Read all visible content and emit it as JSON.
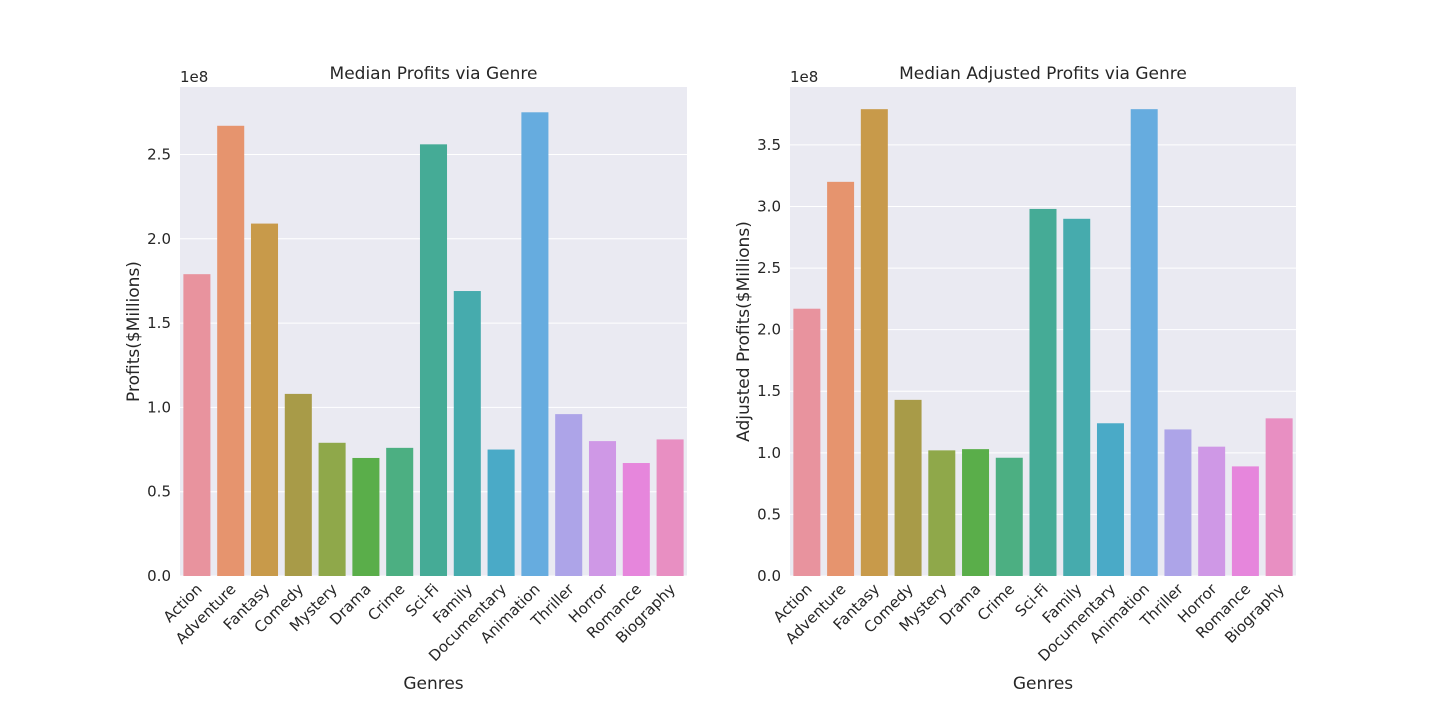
{
  "chart_data": [
    {
      "type": "bar",
      "title": "Median Profits via Genre",
      "xlabel": "Genres",
      "ylabel": "Profits($Millions)",
      "y_multiplier": "1e8",
      "ylim": [
        0,
        290000000
      ],
      "yticks": [
        0,
        50000000,
        100000000,
        150000000,
        200000000,
        250000000
      ],
      "ytick_labels": [
        "0.0",
        "0.5",
        "1.0",
        "1.5",
        "2.0",
        "2.5"
      ],
      "grid": true,
      "categories": [
        "Action",
        "Adventure",
        "Fantasy",
        "Comedy",
        "Mystery",
        "Drama",
        "Crime",
        "Sci-Fi",
        "Family",
        "Documentary",
        "Animation",
        "Thriller",
        "Horror",
        "Romance",
        "Biography"
      ],
      "values": [
        179000000,
        267000000,
        209000000,
        108000000,
        79000000,
        70000000,
        76000000,
        256000000,
        169000000,
        75000000,
        275000000,
        96000000,
        80000000,
        67000000,
        81000000
      ]
    },
    {
      "type": "bar",
      "title": "Median Adjusted Profits via Genre",
      "xlabel": "Genres",
      "ylabel": "Adjusted Profits($Millions)",
      "y_multiplier": "1e8",
      "ylim": [
        0,
        397000000
      ],
      "yticks": [
        0,
        50000000,
        100000000,
        150000000,
        200000000,
        250000000,
        300000000,
        350000000
      ],
      "ytick_labels": [
        "0.0",
        "0.5",
        "1.0",
        "1.5",
        "2.0",
        "2.5",
        "3.0",
        "3.5"
      ],
      "grid": true,
      "categories": [
        "Action",
        "Adventure",
        "Fantasy",
        "Comedy",
        "Mystery",
        "Drama",
        "Crime",
        "Sci-Fi",
        "Family",
        "Documentary",
        "Animation",
        "Thriller",
        "Horror",
        "Romance",
        "Biography"
      ],
      "values": [
        217000000,
        320000000,
        379000000,
        143000000,
        102000000,
        103000000,
        96000000,
        298000000,
        290000000,
        124000000,
        379000000,
        119000000,
        105000000,
        89000000,
        128000000
      ]
    }
  ],
  "colors": [
    "#e8939e",
    "#e6946e",
    "#c89a4a",
    "#a89b48",
    "#8fa84a",
    "#5aae4a",
    "#4caf82",
    "#45ab96",
    "#46abad",
    "#4aaac7",
    "#66acdf",
    "#ada4e8",
    "#cf98e6",
    "#e686dc",
    "#e88fc2"
  ]
}
